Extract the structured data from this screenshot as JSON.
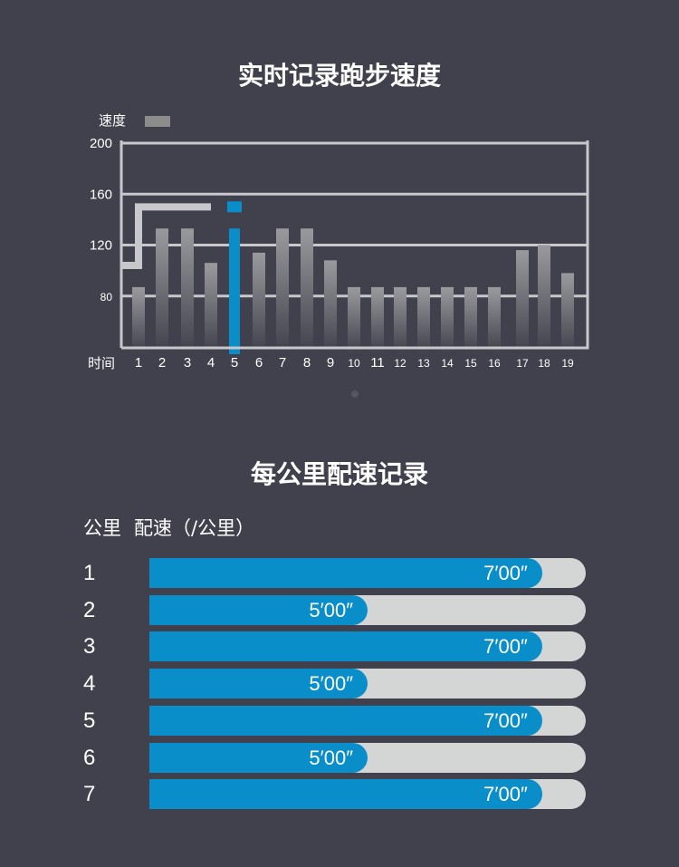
{
  "chart_title": "实时记录跑步速度",
  "chart_data": {
    "type": "bar",
    "legend": {
      "label": "速度",
      "color": "#8c8c8c",
      "position": "top-left"
    },
    "xlabel": "时间",
    "ylabel": "",
    "categories": [
      "1",
      "2",
      "3",
      "4",
      "5",
      "6",
      "7",
      "8",
      "9",
      "10",
      "11",
      "12",
      "13",
      "14",
      "15",
      "16",
      "17",
      "18",
      "19"
    ],
    "series": [
      {
        "name": "速度",
        "values": [
          87,
          133,
          133,
          106,
          133,
          114,
          133,
          133,
          108,
          87,
          87,
          87,
          87,
          87,
          87,
          87,
          116,
          120,
          98
        ]
      }
    ],
    "highlight_index": 4,
    "highlight_color": "#0a8ec9",
    "y_ticks": [
      80,
      120,
      160,
      200
    ],
    "ylim": [
      40,
      200
    ],
    "grid": true,
    "step_line": {
      "points": [
        [
          0.4,
          104
        ],
        [
          0.6,
          104
        ],
        [
          0.6,
          150
        ],
        [
          4,
          150
        ]
      ]
    }
  },
  "pace_section": {
    "title": "每公里配速记录",
    "header": {
      "km_label": "公里",
      "pace_label": "配速（/公里）"
    },
    "rows": [
      {
        "km": "1",
        "pace": "7′00″",
        "fraction": 0.9
      },
      {
        "km": "2",
        "pace": "5′00″",
        "fraction": 0.5
      },
      {
        "km": "3",
        "pace": "7′00″",
        "fraction": 0.9
      },
      {
        "km": "4",
        "pace": "5′00″",
        "fraction": 0.5
      },
      {
        "km": "5",
        "pace": "7′00″",
        "fraction": 0.9
      },
      {
        "km": "6",
        "pace": "5′00″",
        "fraction": 0.5
      },
      {
        "km": "7",
        "pace": "7′00″",
        "fraction": 0.9
      }
    ],
    "fill_color": "#0a8ec9",
    "track_color": "#d4d6d6"
  }
}
